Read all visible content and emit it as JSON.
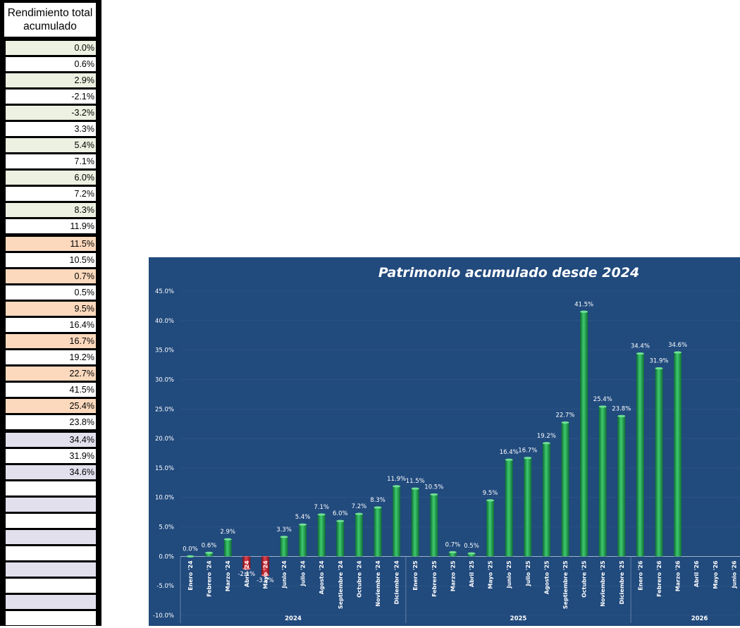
{
  "table": {
    "header": "Rendimiento total acumulado",
    "rows": [
      "0.0%",
      "0.6%",
      "2.9%",
      "-2.1%",
      "-3.2%",
      "3.3%",
      "5.4%",
      "7.1%",
      "6.0%",
      "7.2%",
      "8.3%",
      "11.9%",
      "11.5%",
      "10.5%",
      "0.7%",
      "0.5%",
      "9.5%",
      "16.4%",
      "16.7%",
      "19.2%",
      "22.7%",
      "41.5%",
      "25.4%",
      "23.8%",
      "34.4%",
      "31.9%",
      "34.6%",
      "",
      "",
      "",
      "",
      "",
      "",
      "",
      "",
      ""
    ],
    "shading": {
      "year_2024": "#ecf1e1",
      "year_2025": "#fcd9bd",
      "year_2026": "#e3e0ee",
      "plain": "#ffffff"
    }
  },
  "chart_data": {
    "type": "bar",
    "title": "Patrimonio acumulado desde 2024",
    "categories": [
      "Enero '24",
      "Febrero '24",
      "Marzo '24",
      "Abril '24",
      "Mayo '24",
      "Junio '24",
      "Julio '24",
      "Agosto '24",
      "Septiembre '24",
      "Octubre '24",
      "Noviembre '24",
      "Diciembre '24",
      "Enero '25",
      "Febrero '25",
      "Marzo '25",
      "Abril '25",
      "Mayo '25",
      "Junio '25",
      "Julio '25",
      "Agosto '25",
      "Septiembre '25",
      "Octubre '25",
      "Noviembre '25",
      "Diciembre '25",
      "Enero '26",
      "Febrero '26",
      "Marzo '26",
      "Abril '26",
      "Mayo '26",
      "Junio '26"
    ],
    "values": [
      0.0,
      0.6,
      2.9,
      -2.1,
      -3.2,
      3.3,
      5.4,
      7.1,
      6.0,
      7.2,
      8.3,
      11.9,
      11.5,
      10.5,
      0.7,
      0.5,
      9.5,
      16.4,
      16.7,
      19.2,
      22.7,
      41.5,
      25.4,
      23.8,
      34.4,
      31.9,
      34.6,
      null,
      null,
      null
    ],
    "data_labels": [
      "0.0%",
      "0.6%",
      "2.9%",
      "-2.1%",
      "-3.2%",
      "3.3%",
      "5.4%",
      "7.1%",
      "6.0%",
      "7.2%",
      "8.3%",
      "11.9%",
      "11.5%",
      "10.5%",
      "0.7%",
      "0.5%",
      "9.5%",
      "16.4%",
      "16.7%",
      "19.2%",
      "22.7%",
      "41.5%",
      "25.4%",
      "23.8%",
      "34.4%",
      "31.9%",
      "34.6%",
      "",
      "",
      ""
    ],
    "groups": [
      {
        "label": "2024",
        "count": 12
      },
      {
        "label": "2025",
        "count": 12
      },
      {
        "label": "2026",
        "count": 6
      }
    ],
    "yticks": [
      -10,
      -5,
      0,
      5,
      10,
      15,
      20,
      25,
      30,
      35,
      40,
      45
    ],
    "ytick_labels": [
      "-10.0%",
      "-5.0%",
      "0.0%",
      "5.0%",
      "10.0%",
      "15.0%",
      "20.0%",
      "25.0%",
      "30.0%",
      "35.0%",
      "40.0%",
      "45.0%"
    ],
    "ylim": [
      -10,
      45
    ],
    "xlabel": "",
    "ylabel": "",
    "colors": {
      "background": "#214a7d",
      "positive": "#1d9e4c",
      "negative": "#c0202e",
      "text": "#ffffff"
    }
  }
}
